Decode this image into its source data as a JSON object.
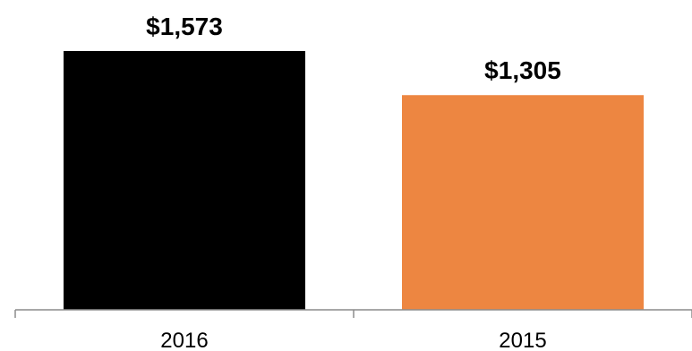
{
  "chart_data": {
    "type": "bar",
    "categories": [
      "2016",
      "2015"
    ],
    "values": [
      1573,
      1305
    ],
    "value_labels": [
      "$1,573",
      "$1,305"
    ],
    "colors": [
      "#000000",
      "#ED8641"
    ],
    "title": "",
    "xlabel": "",
    "ylabel": "",
    "ylim": [
      0,
      1573
    ],
    "grid": false,
    "legend": "none"
  }
}
